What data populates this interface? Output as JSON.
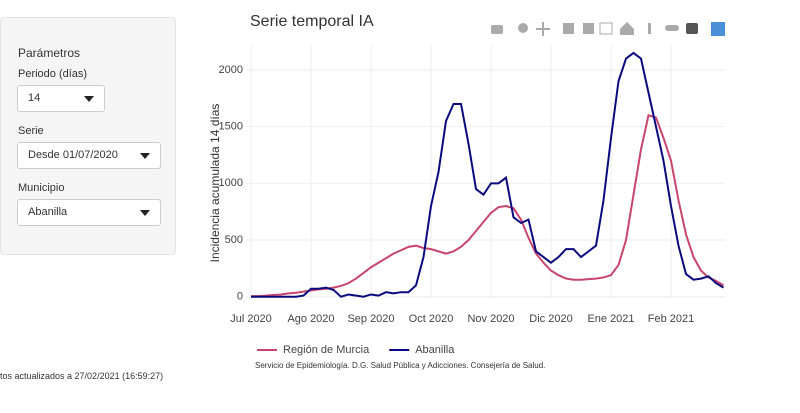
{
  "sidebar": {
    "title": "Parámetros",
    "fields": [
      {
        "label": "Periodo (días)",
        "value": "14"
      },
      {
        "label": "Serie",
        "value": "Desde 01/07/2020"
      },
      {
        "label": "Municipio",
        "value": "Abanilla"
      }
    ]
  },
  "footer": "tos actualizados a 27/02/2021 (16:59:27)",
  "chart_data": {
    "type": "line",
    "title": "Serie temporal IA",
    "y_label": "Incidencia acumulada 14 días",
    "caption": "Servicio de Epidemiología. D.G. Salud Pública y Adicciones. Consejería de Salud.",
    "categories": [
      "Jul 2020",
      null,
      null,
      null,
      null,
      null,
      null,
      null,
      "Ago 2020",
      null,
      null,
      null,
      null,
      null,
      null,
      null,
      "Sep 2020",
      null,
      null,
      null,
      null,
      null,
      null,
      null,
      "Oct 2020",
      null,
      null,
      null,
      null,
      null,
      null,
      null,
      "Nov 2020",
      null,
      null,
      null,
      null,
      null,
      null,
      null,
      "Dic 2020",
      null,
      null,
      null,
      null,
      null,
      null,
      null,
      "Ene 2021",
      null,
      null,
      null,
      null,
      null,
      null,
      null,
      "Feb 2021",
      null,
      null,
      null,
      null,
      null,
      null,
      null
    ],
    "series": [
      {
        "name": "Región de Murcia",
        "color": "#c8456e",
        "values": [
          5,
          5,
          10,
          15,
          20,
          30,
          35,
          45,
          55,
          65,
          70,
          80,
          95,
          120,
          160,
          210,
          260,
          300,
          340,
          380,
          410,
          440,
          450,
          430,
          420,
          400,
          380,
          400,
          440,
          500,
          580,
          660,
          740,
          790,
          800,
          780,
          680,
          520,
          380,
          300,
          230,
          190,
          160,
          150,
          150,
          155,
          160,
          170,
          190,
          280,
          500,
          900,
          1300,
          1600,
          1580,
          1400,
          1200,
          850,
          550,
          350,
          230,
          170,
          140,
          100
        ]
      },
      {
        "name": "Abanilla",
        "color": "#0a0a80",
        "values": [
          0,
          0,
          0,
          0,
          0,
          0,
          0,
          10,
          70,
          70,
          80,
          60,
          0,
          20,
          10,
          0,
          20,
          10,
          40,
          30,
          40,
          40,
          100,
          350,
          800,
          1100,
          1550,
          1700,
          1700,
          1350,
          950,
          900,
          1000,
          1000,
          1050,
          700,
          650,
          680,
          400,
          350,
          300,
          350,
          420,
          420,
          350,
          400,
          450,
          850,
          1400,
          1900,
          2100,
          2150,
          2100,
          1800,
          1500,
          1200,
          800,
          450,
          200,
          150,
          160,
          180,
          120,
          80
        ]
      }
    ],
    "ylim": [
      -20,
      2220
    ],
    "yticks": [
      0,
      500,
      1000,
      1500,
      2000
    ],
    "grid": true,
    "legend": "bottom"
  }
}
